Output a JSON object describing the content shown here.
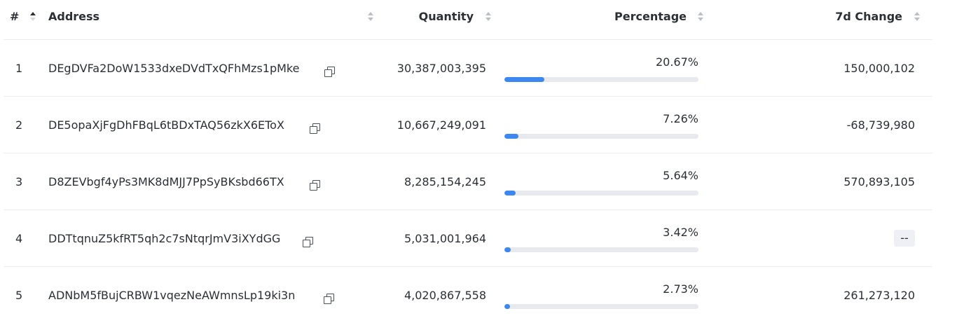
{
  "header": {
    "rank": "#",
    "address": "Address",
    "quantity": "Quantity",
    "percentage": "Percentage",
    "change": "7d Change"
  },
  "rows": [
    {
      "rank": "1",
      "address": "DEgDVFa2DoW1533dxeDVdTxQFhMzs1pMke",
      "quantity": "30,387,003,395",
      "percentage": "20.67%",
      "percent_value": 20.67,
      "change": "150,000,102"
    },
    {
      "rank": "2",
      "address": "DE5opaXjFgDhFBqL6tBDxTAQ56zkX6EToX",
      "quantity": "10,667,249,091",
      "percentage": "7.26%",
      "percent_value": 7.26,
      "change": "-68,739,980"
    },
    {
      "rank": "3",
      "address": "D8ZEVbgf4yPs3MK8dMJJ7PpSyBKsbd66TX",
      "quantity": "8,285,154,245",
      "percentage": "5.64%",
      "percent_value": 5.64,
      "change": "570,893,105"
    },
    {
      "rank": "4",
      "address": "DDTtqnuZ5kfRT5qh2c7sNtqrJmV3iXYdGG",
      "quantity": "5,031,001,964",
      "percentage": "3.42%",
      "percent_value": 3.42,
      "change": "--"
    },
    {
      "rank": "5",
      "address": "ADNbM5fBujCRBW1vqezNeAWmnsLp19ki3n",
      "quantity": "4,020,867,558",
      "percentage": "2.73%",
      "percent_value": 2.73,
      "change": "261,273,120"
    }
  ],
  "colors": {
    "bar_fill": "#3d87f0",
    "bar_track": "#e8e9ee"
  },
  "icons": {
    "copy": "copy-icon",
    "sort": "sort-icon"
  }
}
